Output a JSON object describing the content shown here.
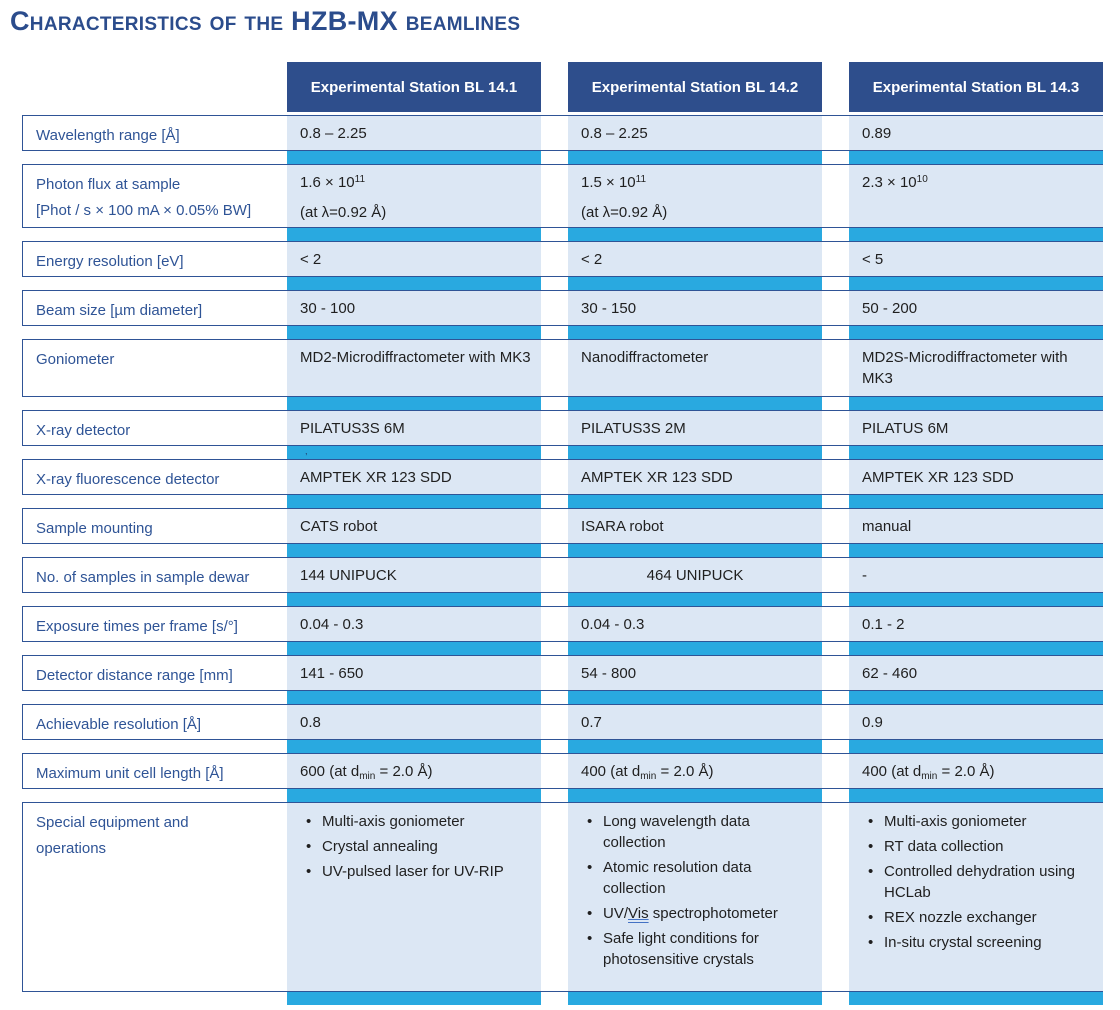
{
  "title": "Characteristics of the HZB-MX beamlines",
  "colors": {
    "title_text": "#2B4C8C",
    "header_bg": "#2E4E8C",
    "header_text": "#FFFFFF",
    "cell_bg": "#DCE7F4",
    "strip": "#29A9E0",
    "row_border": "#2F5496",
    "label_text": "#2F5496",
    "value_text": "#1F1F1F"
  },
  "table": {
    "column_headers": [
      "Experimental Station BL 14.1",
      "Experimental Station BL 14.2",
      "Experimental Station BL 14.3"
    ],
    "rows": {
      "wavelength": {
        "label": "Wavelength range [Å]",
        "values": [
          "0.8 – 2.25",
          "0.8 – 2.25",
          "0.89"
        ]
      },
      "photon_flux": {
        "label_line1": "Photon flux at sample",
        "label_line2": "[Phot / s × 100 mA × 0.05% BW]",
        "values": [
          {
            "mantissa": "1.6 × 10",
            "exponent": "11",
            "note": "(at λ=0.92 Å)"
          },
          {
            "mantissa": "1.5 × 10",
            "exponent": "11",
            "note": "(at λ=0.92 Å)"
          },
          {
            "mantissa": "2.3 × 10",
            "exponent": "10",
            "note": ""
          }
        ]
      },
      "energy_resolution": {
        "label": "Energy resolution [eV]",
        "values": [
          "< 2",
          "< 2",
          "< 5"
        ]
      },
      "beam_size": {
        "label": "Beam size [µm diameter]",
        "values": [
          "30 - 100",
          "30 - 150",
          "50 - 200"
        ]
      },
      "goniometer": {
        "label": "Goniometer",
        "values": [
          "MD2-Microdiffractometer with MK3",
          "Nanodiffractometer",
          "MD2S-Microdiffractometer with MK3"
        ]
      },
      "xray_detector": {
        "label": "X-ray detector",
        "values": [
          "PILATUS3S 6M",
          "PILATUS3S 2M",
          "PILATUS 6M"
        ],
        "stray_mark": ","
      },
      "fluorescence_detector": {
        "label": "X-ray fluorescence detector",
        "values": [
          "AMPTEK XR 123 SDD",
          "AMPTEK XR 123 SDD",
          "AMPTEK XR 123 SDD"
        ]
      },
      "sample_mounting": {
        "label": "Sample mounting",
        "values": [
          "CATS robot",
          "ISARA robot",
          "manual"
        ]
      },
      "samples_dewar": {
        "label": "No. of samples in sample dewar",
        "values": [
          "144 UNIPUCK",
          "464 UNIPUCK",
          "-"
        ]
      },
      "exposure_times": {
        "label": "Exposure times per frame [s/°]",
        "values": [
          "0.04 - 0.3",
          "0.04 - 0.3",
          "0.1 - 2"
        ]
      },
      "detector_distance": {
        "label": "Detector distance range [mm]",
        "values": [
          "141 - 650",
          "54 - 800",
          "62 - 460"
        ]
      },
      "achievable_resolution": {
        "label": "Achievable resolution [Å]",
        "values": [
          "0.8",
          "0.7",
          "0.9"
        ]
      },
      "max_unit_cell": {
        "label": "Maximum unit cell length [Å]",
        "values": [
          {
            "pre": "600 (at d",
            "sub": "min",
            "post": " = 2.0 Å)"
          },
          {
            "pre": "400 (at d",
            "sub": "min",
            "post": " = 2.0 Å)"
          },
          {
            "pre": "400 (at d",
            "sub": "min",
            "post": " = 2.0 Å)"
          }
        ]
      },
      "special_equipment": {
        "label_line1": "Special equipment and",
        "label_line2": "operations",
        "bullets_bl141": [
          "Multi-axis goniometer",
          "Crystal annealing",
          "UV-pulsed laser for UV-RIP"
        ],
        "bullets_bl142": [
          {
            "text": "Long wavelength data collection"
          },
          {
            "text": "Atomic resolution data collection"
          },
          {
            "pre": "UV/",
            "underlined": "Vis",
            "post": " spectrophotometer"
          },
          {
            "text": "Safe light conditions for photosensitive crystals"
          }
        ],
        "bullets_bl143": [
          "Multi-axis goniometer",
          "RT data collection",
          "Controlled dehydration using HCLab",
          "REX nozzle exchanger",
          "In-situ crystal screening"
        ]
      }
    }
  }
}
